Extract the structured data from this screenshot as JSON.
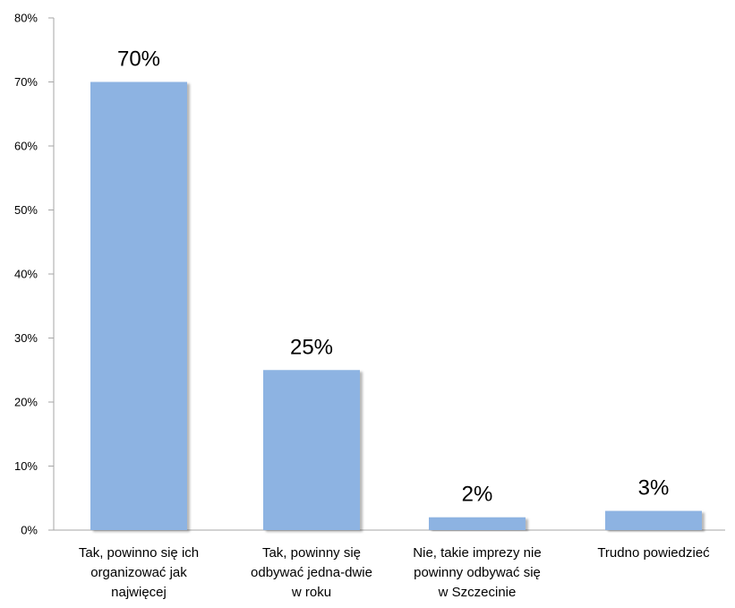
{
  "chart_data": {
    "type": "bar",
    "categories": [
      [
        "Tak, powinno się ich",
        "organizować jak",
        "najwięcej"
      ],
      [
        "Tak, powinny się",
        "odbywać jedna-dwie",
        "w roku"
      ],
      [
        "Nie, takie imprezy nie",
        "powinny odbywać się",
        "w Szczecinie"
      ],
      [
        "Trudno powiedzieć"
      ]
    ],
    "values": [
      70,
      25,
      2,
      3
    ],
    "data_labels": [
      "70%",
      "25%",
      "2%",
      "3%"
    ],
    "ylim": [
      0,
      80
    ],
    "yticks": [
      0,
      10,
      20,
      30,
      40,
      50,
      60,
      70,
      80
    ],
    "ytick_labels": [
      "0%",
      "10%",
      "20%",
      "30%",
      "40%",
      "50%",
      "60%",
      "70%",
      "80%"
    ],
    "title": "",
    "xlabel": "",
    "ylabel": "",
    "grid": false,
    "bar_color": "#8DB3E2",
    "axis_color": "#A6A6A6"
  }
}
